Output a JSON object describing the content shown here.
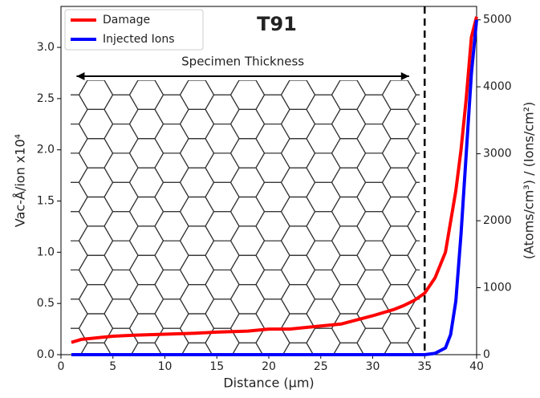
{
  "chart_data": {
    "type": "line",
    "title": "T91",
    "annotation": "Specimen Thickness",
    "thickness_arrow": [
      1.5,
      33.5
    ],
    "vline": 35,
    "x_label": "Distance (µm)",
    "y_label": "Vac-Å/ion x10⁴",
    "y2_label": "(Atoms/cm³) / (Ions/cm²)",
    "xlim": [
      0,
      40
    ],
    "xticks": [
      0,
      5,
      10,
      15,
      20,
      25,
      30,
      35,
      40
    ],
    "ylim": [
      0,
      3.4
    ],
    "yticks": [
      {
        "value": 0,
        "label": "0.0"
      },
      {
        "value": 0.5,
        "label": "0.5"
      },
      {
        "value": 1,
        "label": "1.0"
      },
      {
        "value": 1.5,
        "label": "1.5"
      },
      {
        "value": 2,
        "label": "2.0"
      },
      {
        "value": 2.5,
        "label": "2.5"
      },
      {
        "value": 3,
        "label": "3.0"
      }
    ],
    "y2lim": [
      0,
      5200
    ],
    "y2ticks": [
      0,
      1000,
      2000,
      3000,
      4000,
      5000
    ],
    "legend": "upper left",
    "series": [
      {
        "name": "Damage",
        "color": "#ff0000",
        "x": [
          1,
          2,
          3,
          5,
          7,
          10,
          13,
          15,
          18,
          20,
          22,
          25,
          27,
          30,
          32,
          33,
          34,
          35,
          36,
          37,
          38,
          38.5,
          39,
          39.5,
          40
        ],
        "values": [
          0.12,
          0.15,
          0.16,
          0.18,
          0.19,
          0.2,
          0.21,
          0.22,
          0.23,
          0.25,
          0.25,
          0.28,
          0.3,
          0.38,
          0.44,
          0.48,
          0.53,
          0.6,
          0.75,
          1.0,
          1.6,
          2.0,
          2.5,
          3.1,
          3.3
        ]
      },
      {
        "name": "Injected Ions",
        "color": "#0000ff",
        "axis": "y2",
        "x": [
          1,
          10,
          20,
          30,
          35,
          36,
          37,
          37.5,
          38,
          38.5,
          39,
          39.5,
          40
        ],
        "values": [
          0,
          0,
          0,
          0,
          0,
          20,
          100,
          300,
          800,
          1800,
          3000,
          4200,
          5000
        ]
      }
    ]
  }
}
